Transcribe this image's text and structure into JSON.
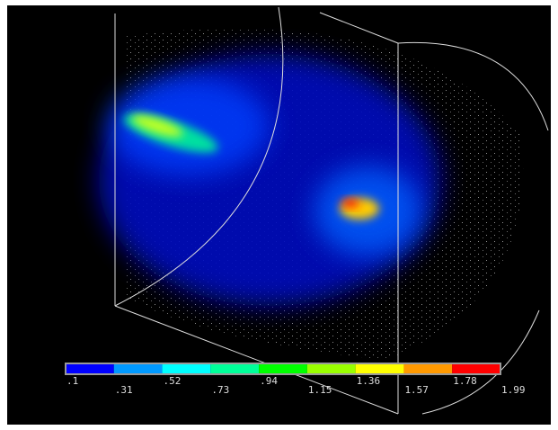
{
  "legend": {
    "labels": [
      ".1",
      ".31",
      ".52",
      ".73",
      ".94",
      "1.15",
      "1.36",
      "1.57",
      "1.78",
      "1.99"
    ],
    "colors": [
      "#0000ff",
      "#0099ff",
      "#00ffff",
      "#00ff99",
      "#00ff00",
      "#99ff00",
      "#ffff00",
      "#ff9900",
      "#ff0000"
    ]
  }
}
